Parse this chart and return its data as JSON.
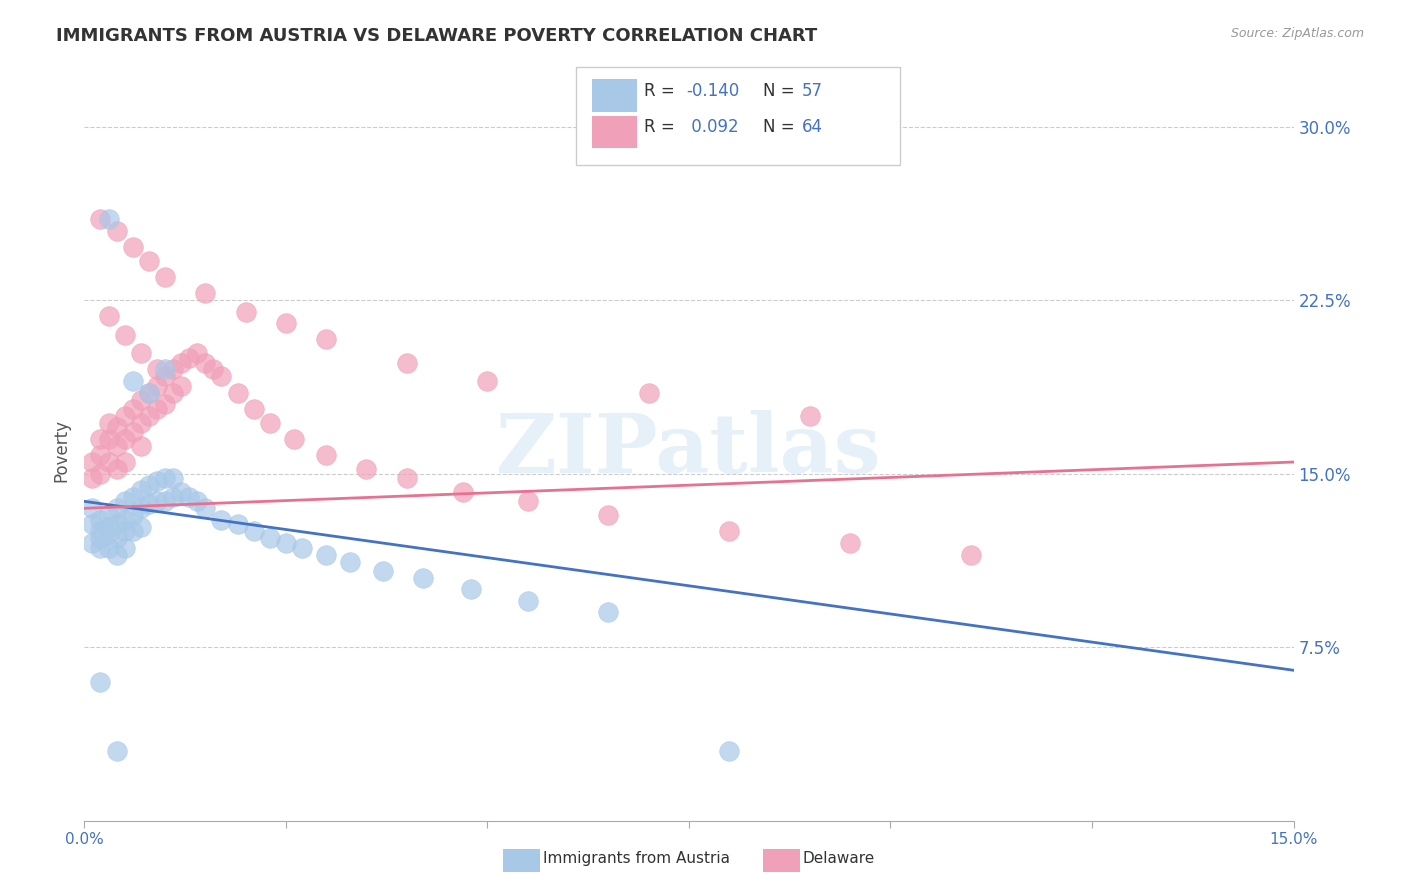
{
  "title": "IMMIGRANTS FROM AUSTRIA VS DELAWARE POVERTY CORRELATION CHART",
  "source": "Source: ZipAtlas.com",
  "ylabel": "Poverty",
  "ytick_labels": [
    "7.5%",
    "15.0%",
    "22.5%",
    "30.0%"
  ],
  "ytick_values": [
    0.075,
    0.15,
    0.225,
    0.3
  ],
  "xmin": 0.0,
  "xmax": 0.15,
  "ymin": 0.0,
  "ymax": 0.32,
  "color_blue": "#A8C8E8",
  "color_pink": "#F0A0B8",
  "color_blue_text": "#4472C4",
  "color_line_blue": "#4472C4",
  "color_line_pink": "#E87090",
  "watermark": "ZIPatlas",
  "blue_scatter_x": [
    0.001,
    0.001,
    0.001,
    0.002,
    0.002,
    0.002,
    0.002,
    0.003,
    0.003,
    0.003,
    0.003,
    0.004,
    0.004,
    0.004,
    0.004,
    0.005,
    0.005,
    0.005,
    0.005,
    0.006,
    0.006,
    0.006,
    0.007,
    0.007,
    0.007,
    0.008,
    0.008,
    0.009,
    0.009,
    0.01,
    0.01,
    0.011,
    0.011,
    0.012,
    0.013,
    0.014,
    0.015,
    0.017,
    0.019,
    0.021,
    0.023,
    0.025,
    0.027,
    0.03,
    0.033,
    0.037,
    0.042,
    0.048,
    0.055,
    0.065,
    0.08,
    0.01,
    0.006,
    0.008,
    0.003,
    0.002,
    0.004
  ],
  "blue_scatter_y": [
    0.135,
    0.128,
    0.12,
    0.13,
    0.125,
    0.122,
    0.118,
    0.132,
    0.127,
    0.124,
    0.118,
    0.135,
    0.128,
    0.122,
    0.115,
    0.138,
    0.13,
    0.125,
    0.118,
    0.14,
    0.132,
    0.125,
    0.143,
    0.135,
    0.127,
    0.145,
    0.137,
    0.147,
    0.138,
    0.148,
    0.138,
    0.148,
    0.14,
    0.142,
    0.14,
    0.138,
    0.135,
    0.13,
    0.128,
    0.125,
    0.122,
    0.12,
    0.118,
    0.115,
    0.112,
    0.108,
    0.105,
    0.1,
    0.095,
    0.09,
    0.03,
    0.195,
    0.19,
    0.185,
    0.26,
    0.06,
    0.03
  ],
  "pink_scatter_x": [
    0.001,
    0.001,
    0.002,
    0.002,
    0.002,
    0.003,
    0.003,
    0.003,
    0.004,
    0.004,
    0.004,
    0.005,
    0.005,
    0.005,
    0.006,
    0.006,
    0.007,
    0.007,
    0.007,
    0.008,
    0.008,
    0.009,
    0.009,
    0.01,
    0.01,
    0.011,
    0.011,
    0.012,
    0.013,
    0.014,
    0.015,
    0.016,
    0.017,
    0.019,
    0.021,
    0.023,
    0.026,
    0.03,
    0.035,
    0.04,
    0.047,
    0.055,
    0.065,
    0.08,
    0.095,
    0.11,
    0.003,
    0.005,
    0.007,
    0.009,
    0.012,
    0.002,
    0.004,
    0.006,
    0.008,
    0.01,
    0.015,
    0.02,
    0.025,
    0.03,
    0.04,
    0.05,
    0.07,
    0.09
  ],
  "pink_scatter_y": [
    0.155,
    0.148,
    0.165,
    0.158,
    0.15,
    0.172,
    0.165,
    0.155,
    0.17,
    0.162,
    0.152,
    0.175,
    0.165,
    0.155,
    0.178,
    0.168,
    0.182,
    0.172,
    0.162,
    0.185,
    0.175,
    0.188,
    0.178,
    0.192,
    0.18,
    0.195,
    0.185,
    0.198,
    0.2,
    0.202,
    0.198,
    0.195,
    0.192,
    0.185,
    0.178,
    0.172,
    0.165,
    0.158,
    0.152,
    0.148,
    0.142,
    0.138,
    0.132,
    0.125,
    0.12,
    0.115,
    0.218,
    0.21,
    0.202,
    0.195,
    0.188,
    0.26,
    0.255,
    0.248,
    0.242,
    0.235,
    0.228,
    0.22,
    0.215,
    0.208,
    0.198,
    0.19,
    0.185,
    0.175
  ],
  "blue_trend_x0": 0.0,
  "blue_trend_y0": 0.138,
  "blue_trend_x1": 0.15,
  "blue_trend_y1": 0.065,
  "pink_trend_x0": 0.0,
  "pink_trend_y0": 0.135,
  "pink_trend_x1": 0.15,
  "pink_trend_y1": 0.155
}
